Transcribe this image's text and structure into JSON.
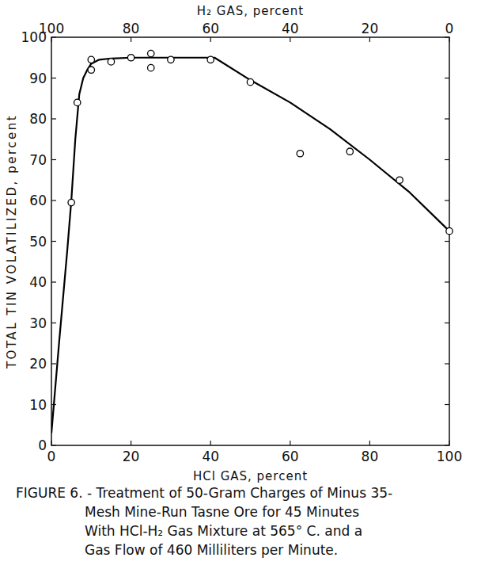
{
  "chart_data": {
    "type": "scatter",
    "title": [
      "FIGURE 6. - Treatment of 50-Gram Charges of Minus 35-",
      "Mesh Mine-Run Tasne Ore for 45 Minutes",
      "With HCl-H₂ Gas Mixture at 565° C. and a",
      "Gas Flow of 460 Milliliters per Minute."
    ],
    "x_label": "HCl GAS, percent",
    "x2_label": "H₂ GAS, percent",
    "y_label": "TOTAL TIN VOLATILIZED, percent",
    "xlim": [
      0,
      100
    ],
    "xticks": [
      0,
      20,
      40,
      60,
      80,
      100
    ],
    "x2lim": [
      100,
      0
    ],
    "x2ticks": [
      100,
      80,
      60,
      40,
      20,
      0
    ],
    "ylim": [
      0,
      100
    ],
    "yticks": [
      0,
      10,
      20,
      30,
      40,
      50,
      60,
      70,
      80,
      90,
      100
    ],
    "grid": false,
    "series": [
      {
        "type": "scatter",
        "marker": "circle",
        "color": "#000000",
        "x": [
          5,
          6.5,
          10,
          10,
          15,
          20,
          25,
          25,
          30,
          40,
          50,
          62.5,
          75,
          87.5,
          100
        ],
        "values": [
          59.5,
          84,
          92,
          94.5,
          94,
          95,
          96,
          92.5,
          94.5,
          94.5,
          89,
          71.5,
          72,
          65,
          52.5
        ]
      },
      {
        "type": "line",
        "line_style": "solid",
        "color": "#000000",
        "x": [
          0,
          2,
          4,
          5,
          6,
          7,
          8,
          9,
          10,
          12,
          15,
          20,
          30,
          41,
          50,
          60,
          70,
          80,
          90,
          100
        ],
        "values": [
          3,
          26,
          48,
          60,
          75,
          86,
          90,
          92,
          93.5,
          94.5,
          94.8,
          95,
          95,
          95,
          89.5,
          84,
          77.5,
          70,
          62,
          52.5
        ]
      }
    ]
  }
}
